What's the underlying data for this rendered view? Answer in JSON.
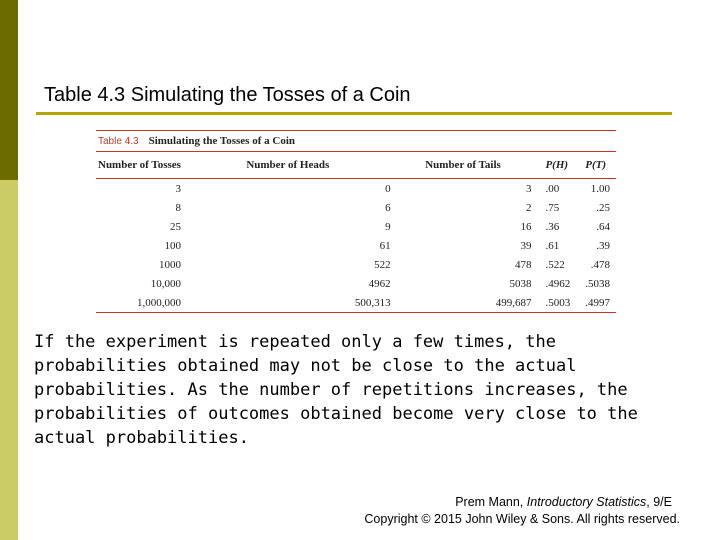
{
  "slide": {
    "title": "Table 4.3 Simulating the Tosses of a Coin",
    "body": "If the experiment is repeated only a few times, the probabilities obtained may not be close to the actual probabilities. As the number of repetitions increases, the probabilities of outcomes obtained become very close to the actual probabilities.",
    "credit": {
      "author": "Prem Mann,",
      "book": "Introductory Statistics",
      "edition": ", 9/E",
      "copyright": "Copyright © 2015 John Wiley & Sons. All rights reserved."
    }
  },
  "table": {
    "label": "Table 4.3",
    "caption": "Simulating the Tosses of a Coin",
    "headers": [
      "Number of Tosses",
      "Number of Heads",
      "Number of Tails",
      "P(H)",
      "P(T)"
    ],
    "rows": [
      [
        "3",
        "0",
        "3",
        ".00",
        "1.00"
      ],
      [
        "8",
        "6",
        "2",
        ".75",
        ".25"
      ],
      [
        "25",
        "9",
        "16",
        ".36",
        ".64"
      ],
      [
        "100",
        "61",
        "39",
        ".61",
        ".39"
      ],
      [
        "1000",
        "522",
        "478",
        ".522",
        ".478"
      ],
      [
        "10,000",
        "4962",
        "5038",
        ".4962",
        ".5038"
      ],
      [
        "1,000,000",
        "500,313",
        "499,687",
        ".5003",
        ".4997"
      ]
    ]
  },
  "colors": {
    "sidebar_dark": "#6b6b00",
    "sidebar_light": "#cccc66",
    "title_rule": "#b3a600",
    "table_accent": "#c0392b"
  }
}
